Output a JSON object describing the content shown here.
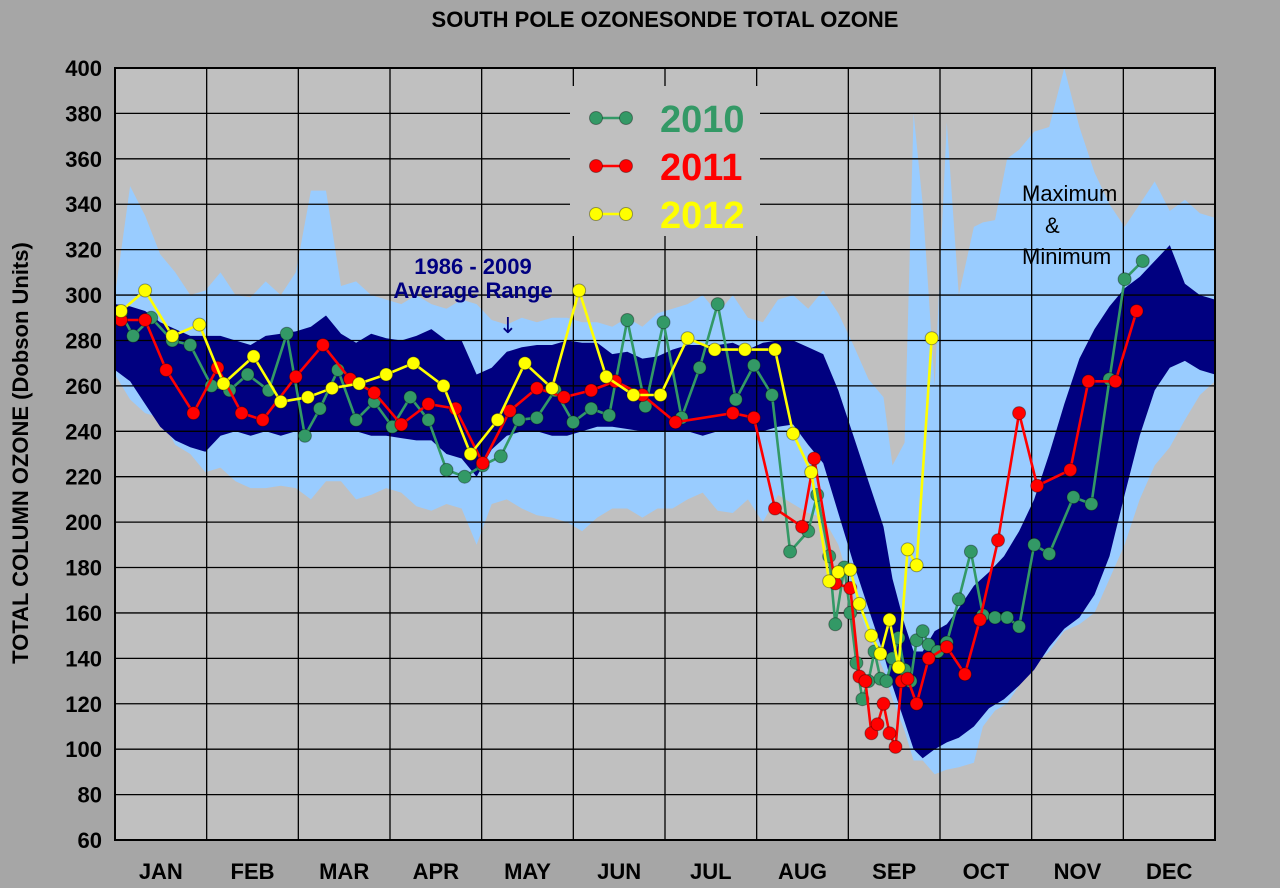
{
  "chart_data": {
    "type": "line",
    "title": "SOUTH POLE OZONESONDE TOTAL OZONE",
    "ylabel": "TOTAL COLUMN OZONE  (Dobson Units)",
    "xlabel": "",
    "ylim": [
      60,
      400
    ],
    "yticks": [
      60,
      80,
      100,
      120,
      140,
      160,
      180,
      200,
      220,
      240,
      260,
      280,
      300,
      320,
      340,
      360,
      380,
      400
    ],
    "xlim": [
      0,
      365
    ],
    "month_labels": [
      "JAN",
      "FEB",
      "MAR",
      "APR",
      "MAY",
      "JUN",
      "JUL",
      "AUG",
      "SEP",
      "OCT",
      "NOV",
      "DEC"
    ],
    "grid": true,
    "legend_position": "top-center",
    "annotations": {
      "avg_range_years": "1986 - 2009",
      "avg_range_label": "Average Range",
      "avg_range_arrow": "↓",
      "maxmin_line1": "Maximum",
      "maxmin_line2": "&",
      "maxmin_line3": "Minimum"
    },
    "colors": {
      "background": "#a6a6a6",
      "plot_area": "#c0c0c0",
      "maxmin_band": "#99ccff",
      "avg_band": "#000080",
      "annotation_text": "#000080"
    },
    "envelopes": [
      {
        "name": "Maximum & Minimum",
        "color": "#99ccff",
        "x": [
          0,
          5,
          10,
          15,
          20,
          25,
          30,
          35,
          40,
          45,
          50,
          55,
          60,
          65,
          70,
          75,
          80,
          85,
          90,
          95,
          100,
          105,
          110,
          115,
          120,
          125,
          130,
          135,
          140,
          145,
          150,
          155,
          160,
          165,
          170,
          175,
          180,
          185,
          190,
          195,
          200,
          205,
          210,
          215,
          220,
          225,
          230,
          235,
          240,
          245,
          250,
          255,
          258,
          262,
          265,
          268,
          272,
          276,
          280,
          285,
          288,
          292,
          296,
          300,
          305,
          310,
          315,
          320,
          325,
          330,
          335,
          340,
          345,
          350,
          355,
          360,
          365
        ],
        "upper": [
          300,
          348,
          335,
          318,
          310,
          300,
          302,
          310,
          300,
          299,
          306,
          300,
          310,
          346,
          346,
          304,
          306,
          300,
          298,
          296,
          300,
          296,
          294,
          298,
          296,
          289,
          287,
          290,
          288,
          290,
          290,
          288,
          288,
          286,
          290,
          286,
          292,
          294,
          296,
          300,
          292,
          300,
          290,
          288,
          298,
          300,
          294,
          302,
          292,
          278,
          263,
          255,
          225,
          235,
          380,
          340,
          260,
          376,
          300,
          330,
          332,
          333,
          360,
          364,
          372,
          374,
          400,
          374,
          354,
          340,
          330,
          340,
          350,
          337,
          342,
          336,
          334
        ],
        "lower": [
          265,
          254,
          248,
          246,
          234,
          230,
          222,
          224,
          218,
          215,
          215,
          216,
          215,
          210,
          218,
          218,
          210,
          212,
          215,
          213,
          207,
          205,
          208,
          206,
          190,
          208,
          210,
          206,
          203,
          202,
          200,
          196,
          202,
          206,
          206,
          202,
          206,
          206,
          210,
          213,
          205,
          204,
          210,
          200,
          212,
          208,
          204,
          202,
          190,
          168,
          150,
          135,
          122,
          108,
          95,
          95,
          89,
          91,
          92,
          94,
          110,
          117,
          120,
          128,
          137,
          143,
          152,
          155,
          160,
          175,
          190,
          210,
          225,
          233,
          245,
          256,
          262
        ]
      },
      {
        "name": "1986 - 2009 Average Range",
        "color": "#000080",
        "x": [
          0,
          5,
          10,
          15,
          20,
          25,
          30,
          35,
          40,
          45,
          50,
          55,
          60,
          65,
          70,
          75,
          80,
          85,
          90,
          95,
          100,
          105,
          110,
          115,
          120,
          125,
          130,
          135,
          140,
          145,
          150,
          155,
          160,
          165,
          170,
          175,
          180,
          185,
          190,
          195,
          200,
          205,
          210,
          215,
          220,
          225,
          230,
          235,
          240,
          245,
          250,
          255,
          258,
          262,
          265,
          268,
          272,
          276,
          280,
          285,
          290,
          295,
          300,
          305,
          310,
          315,
          320,
          325,
          330,
          335,
          340,
          345,
          350,
          355,
          360,
          365
        ],
        "upper": [
          296,
          295,
          293,
          288,
          285,
          282,
          282,
          282,
          280,
          278,
          282,
          283,
          284,
          286,
          291,
          283,
          279,
          283,
          281,
          280,
          282,
          285,
          280,
          280,
          265,
          268,
          275,
          277,
          278,
          278,
          280,
          279,
          279,
          274,
          275,
          272,
          273,
          276,
          278,
          278,
          278,
          279,
          276,
          279,
          280,
          280,
          277,
          274,
          258,
          238,
          218,
          198,
          175,
          155,
          143,
          143,
          152,
          155,
          162,
          172,
          178,
          185,
          196,
          210,
          230,
          252,
          272,
          285,
          295,
          303,
          308,
          315,
          322,
          305,
          300,
          298
        ],
        "lower": [
          267,
          262,
          252,
          242,
          236,
          233,
          231,
          238,
          240,
          238,
          240,
          238,
          240,
          240,
          240,
          240,
          240,
          238,
          238,
          237,
          236,
          236,
          230,
          228,
          220,
          232,
          238,
          240,
          240,
          238,
          238,
          240,
          242,
          242,
          241,
          240,
          240,
          240,
          240,
          238,
          240,
          240,
          240,
          240,
          242,
          243,
          234,
          226,
          204,
          182,
          162,
          142,
          128,
          112,
          100,
          96,
          100,
          103,
          105,
          110,
          118,
          122,
          128,
          135,
          145,
          153,
          158,
          168,
          185,
          212,
          238,
          258,
          268,
          271,
          267,
          265
        ]
      }
    ],
    "series": [
      {
        "name": "2010",
        "color": "#339966",
        "x": [
          2,
          6,
          12,
          19,
          25,
          32,
          38,
          44,
          51,
          57,
          63,
          68,
          74,
          80,
          86,
          92,
          98,
          104,
          110,
          116,
          122,
          128,
          134,
          140,
          146,
          152,
          158,
          164,
          170,
          176,
          182,
          188,
          194,
          200,
          206,
          212,
          218,
          224,
          230,
          233,
          237,
          239,
          242,
          244,
          246,
          248,
          250,
          252,
          254,
          256,
          258,
          260,
          262,
          264,
          266,
          268,
          270,
          273,
          276,
          280,
          284,
          288,
          292,
          296,
          300,
          305,
          310,
          318,
          324,
          330,
          335,
          341,
          348,
          355,
          362
        ],
        "values": [
          292,
          282,
          290,
          280,
          278,
          260,
          258,
          265,
          258,
          283,
          238,
          250,
          267,
          245,
          253,
          242,
          255,
          245,
          223,
          220,
          225,
          229,
          245,
          246,
          258,
          244,
          250,
          247,
          289,
          251,
          288,
          246,
          268,
          296,
          254,
          269,
          256,
          187,
          196,
          212,
          185,
          155,
          180,
          160,
          138,
          122,
          130,
          143,
          131,
          130,
          140,
          149,
          135,
          130,
          148,
          152,
          146,
          143,
          147,
          166,
          187,
          159,
          158,
          158,
          154,
          190,
          186,
          211,
          208,
          263,
          307,
          315,
          null,
          null,
          null
        ],
        "marker": "circle"
      },
      {
        "name": "2011",
        "color": "#ff0000",
        "x": [
          2,
          10,
          17,
          26,
          34,
          42,
          49,
          60,
          69,
          78,
          86,
          95,
          104,
          113,
          122,
          131,
          140,
          149,
          158,
          166,
          175,
          186,
          205,
          212,
          219,
          228,
          232,
          239,
          244,
          247,
          249,
          251,
          253,
          255,
          257,
          259,
          261,
          263,
          266,
          270,
          276,
          282,
          287,
          293,
          300,
          306,
          317,
          323,
          332,
          339
        ],
        "values": [
          289,
          289,
          267,
          248,
          268,
          248,
          245,
          264,
          278,
          263,
          257,
          243,
          252,
          250,
          226,
          249,
          259,
          255,
          258,
          262,
          256,
          244,
          248,
          246,
          206,
          198,
          228,
          173,
          171,
          132,
          130,
          107,
          111,
          120,
          107,
          101,
          130,
          131,
          120,
          140,
          145,
          133,
          157,
          192,
          248,
          216,
          223,
          262,
          262,
          293
        ],
        "marker": "circle"
      },
      {
        "name": "2012",
        "color": "#ffff00",
        "x": [
          2,
          10,
          19,
          28,
          36,
          46,
          55,
          64,
          72,
          81,
          90,
          99,
          109,
          118,
          127,
          136,
          145,
          154,
          163,
          172,
          181,
          190,
          199,
          209,
          219,
          225,
          231,
          237,
          240,
          244,
          247,
          251,
          254,
          257,
          260,
          263,
          266,
          271
        ],
        "values": [
          293,
          302,
          282,
          287,
          261,
          273,
          253,
          255,
          259,
          261,
          265,
          270,
          260,
          230,
          245,
          270,
          259,
          302,
          264,
          256,
          256,
          281,
          276,
          276,
          276,
          239,
          222,
          174,
          178,
          179,
          164,
          150,
          142,
          157,
          136,
          188,
          181,
          281
        ],
        "marker": "circle"
      }
    ]
  }
}
